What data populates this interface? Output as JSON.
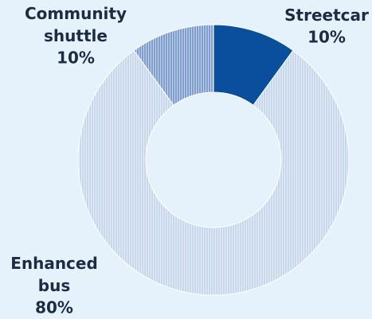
{
  "chart_data": {
    "type": "donut",
    "categories": [
      "Streetcar",
      "Enhanced bus",
      "Community shuttle"
    ],
    "values": [
      10,
      80,
      10
    ],
    "value_labels": [
      "10%",
      "80%",
      "10%"
    ],
    "colors": [
      "#0a4f9e",
      "#c7d8ec",
      "#7d9ecf"
    ]
  }
}
